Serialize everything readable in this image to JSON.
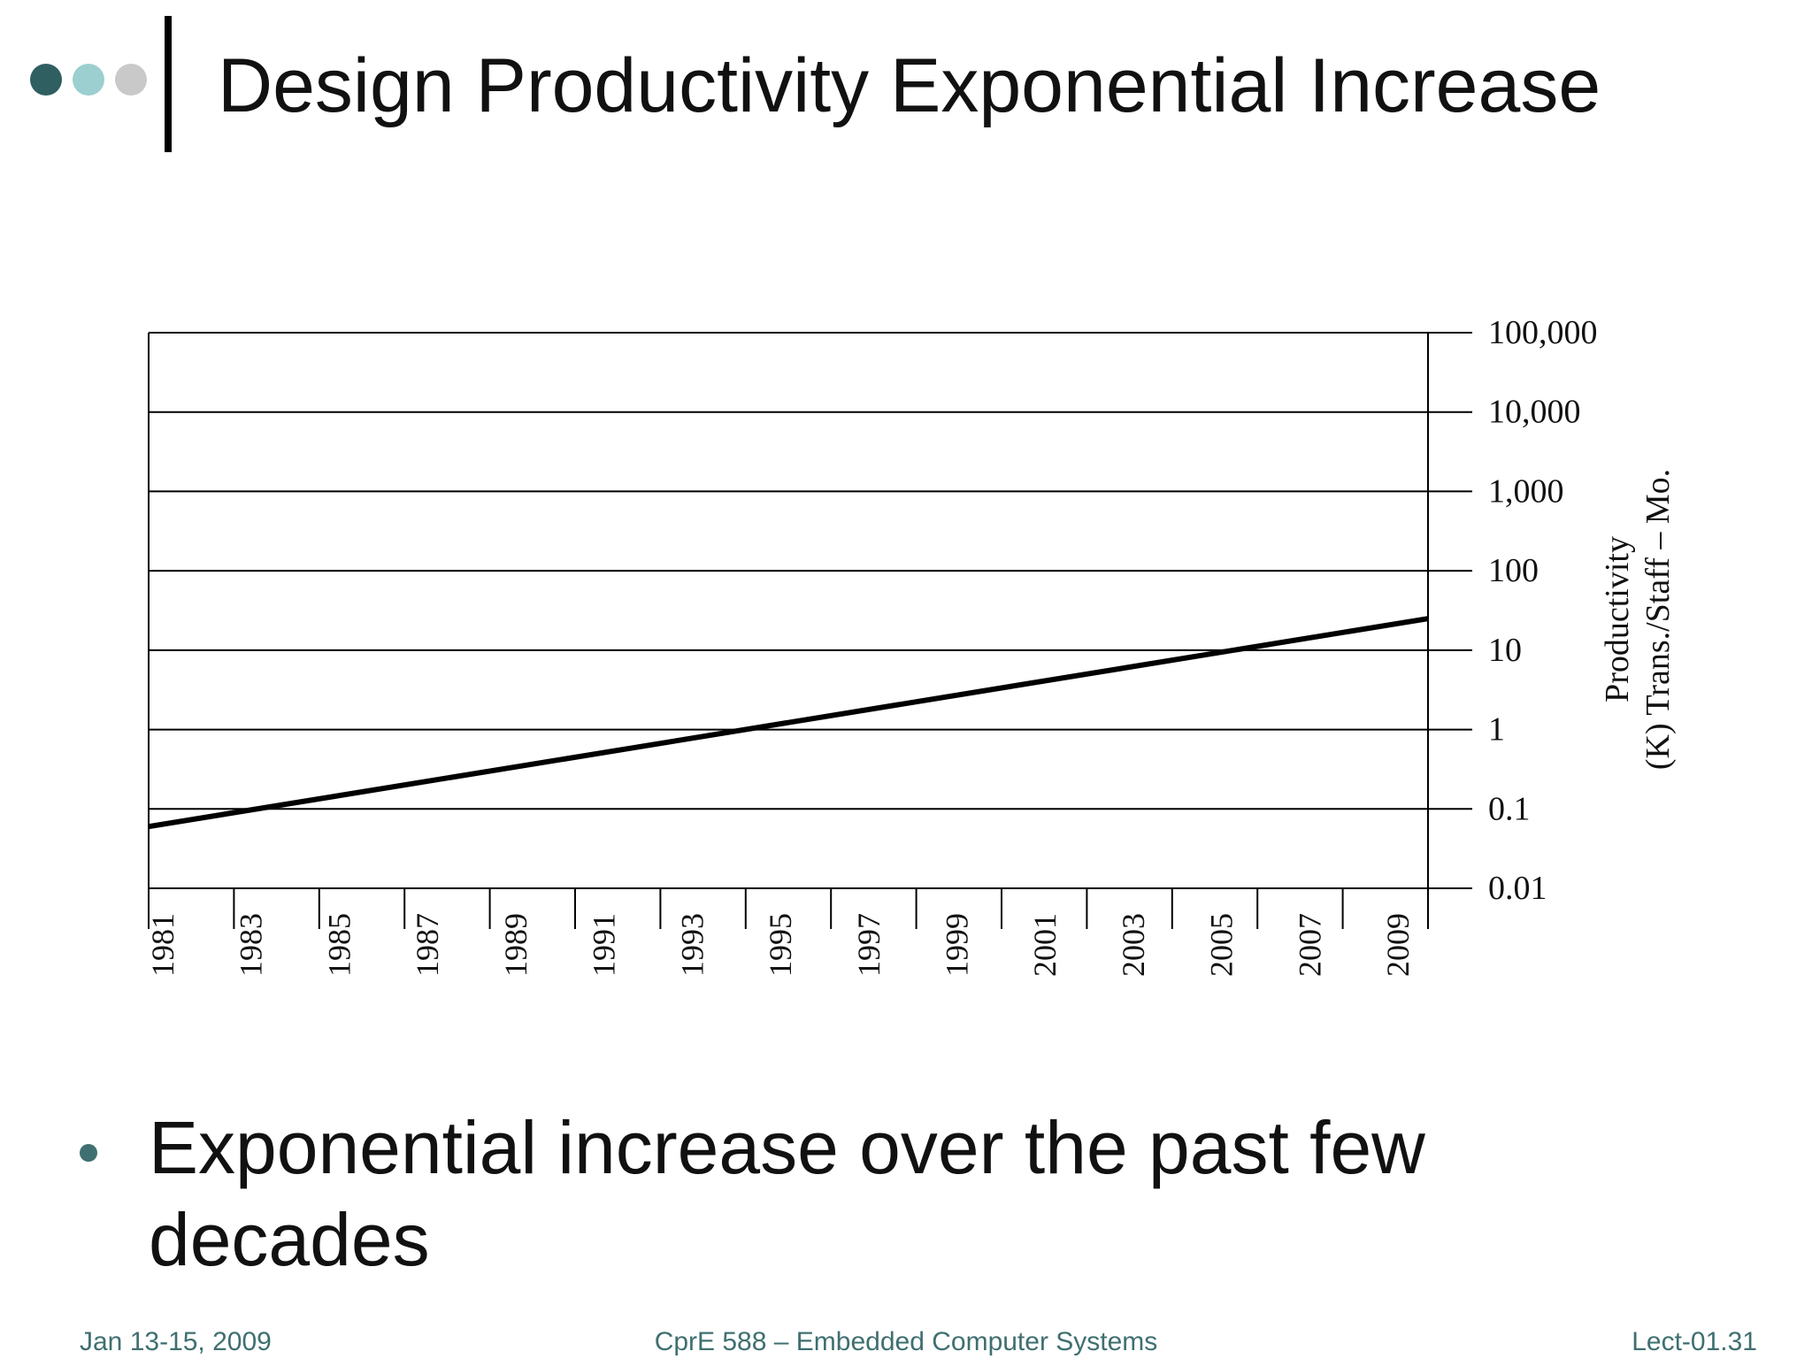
{
  "slide": {
    "title": "Design Productivity Exponential Increase",
    "bullet": "Exponential increase over the past few decades",
    "footer_left": "Jan 13-15, 2009",
    "footer_center": "CprE 588 – Embedded Computer Systems",
    "footer_right": "Lect-01.31",
    "decor_dots": [
      "#2f5f60",
      "#9ccfd0",
      "#c9c9c9"
    ],
    "accent_color": "#3f6f70"
  },
  "chart_data": {
    "type": "line",
    "title": "",
    "xlabel": "",
    "ylabel_lines": [
      "Productivity",
      "(K) Trans./Staff – Mo."
    ],
    "y_axis_side": "right",
    "y_scale": "log",
    "ylim": [
      0.01,
      100000
    ],
    "y_ticks": [
      0.01,
      0.1,
      1,
      10,
      100,
      1000,
      10000,
      100000
    ],
    "y_tick_labels": [
      "0.01",
      "0.1",
      "1",
      "10",
      "100",
      "1,000",
      "10,000",
      "100,000"
    ],
    "x_ticks": [
      1981,
      1983,
      1985,
      1987,
      1989,
      1991,
      1993,
      1995,
      1997,
      1999,
      2001,
      2003,
      2005,
      2007,
      2009
    ],
    "x_tick_labels": [
      "1981",
      "1983",
      "1985",
      "1987",
      "1989",
      "1991",
      "1993",
      "1995",
      "1997",
      "1999",
      "2001",
      "2003",
      "2005",
      "2007",
      "2009"
    ],
    "xlim": [
      1981,
      2010
    ],
    "grid": "horizontal",
    "legend": "none",
    "series": [
      {
        "color": "#000000",
        "x": [
          1981,
          2010
        ],
        "y": [
          0.06,
          25
        ]
      }
    ]
  }
}
